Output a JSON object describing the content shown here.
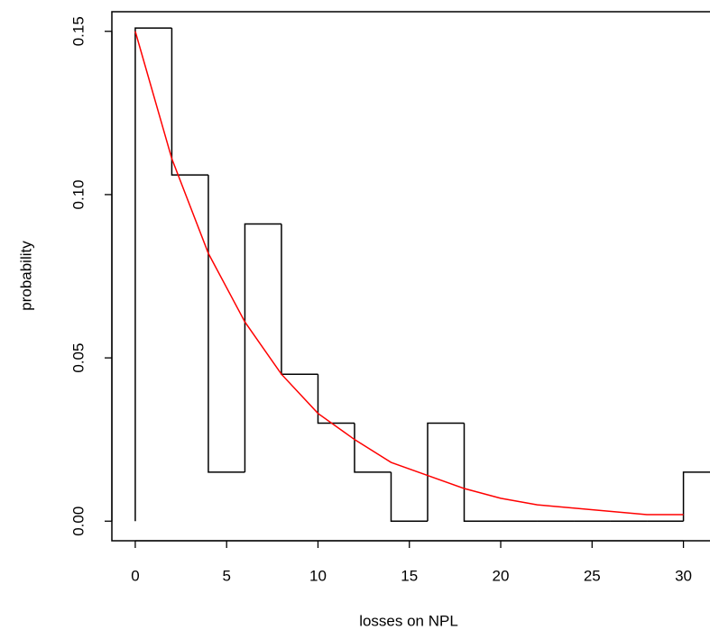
{
  "chart_data": {
    "type": "histogram",
    "xlabel": "losses on NPL",
    "ylabel": "probability",
    "bins": [
      0,
      2,
      4,
      6,
      8,
      10,
      12,
      14,
      16,
      18,
      20,
      22,
      24,
      26,
      28,
      30,
      32
    ],
    "values": [
      0.151,
      0.106,
      0.015,
      0.091,
      0.045,
      0.03,
      0.015,
      0,
      0.03,
      0,
      0,
      0,
      0,
      0,
      0,
      0.015
    ],
    "color": "#000000",
    "curve": {
      "color": "#ff0000",
      "x": [
        0,
        2,
        4,
        6,
        8,
        10,
        12,
        14,
        16,
        18,
        20,
        22,
        24,
        26,
        28,
        30
      ],
      "values": [
        0.15,
        0.111,
        0.082,
        0.061,
        0.045,
        0.033,
        0.025,
        0.018,
        0.014,
        0.01,
        0.007,
        0.005,
        0.004,
        0.003,
        0.002,
        0.002
      ]
    },
    "xlim": [
      -1.28,
      33.28
    ],
    "ylim": [
      -0.006,
      0.156
    ],
    "xticks": [
      0,
      5,
      10,
      15,
      20,
      25,
      30
    ],
    "yticks": [
      {
        "value": 0,
        "label": "0.00"
      },
      {
        "value": 0.05,
        "label": "0.05"
      },
      {
        "value": 0.1,
        "label": "0.10"
      },
      {
        "value": 0.15,
        "label": "0.15"
      }
    ]
  }
}
